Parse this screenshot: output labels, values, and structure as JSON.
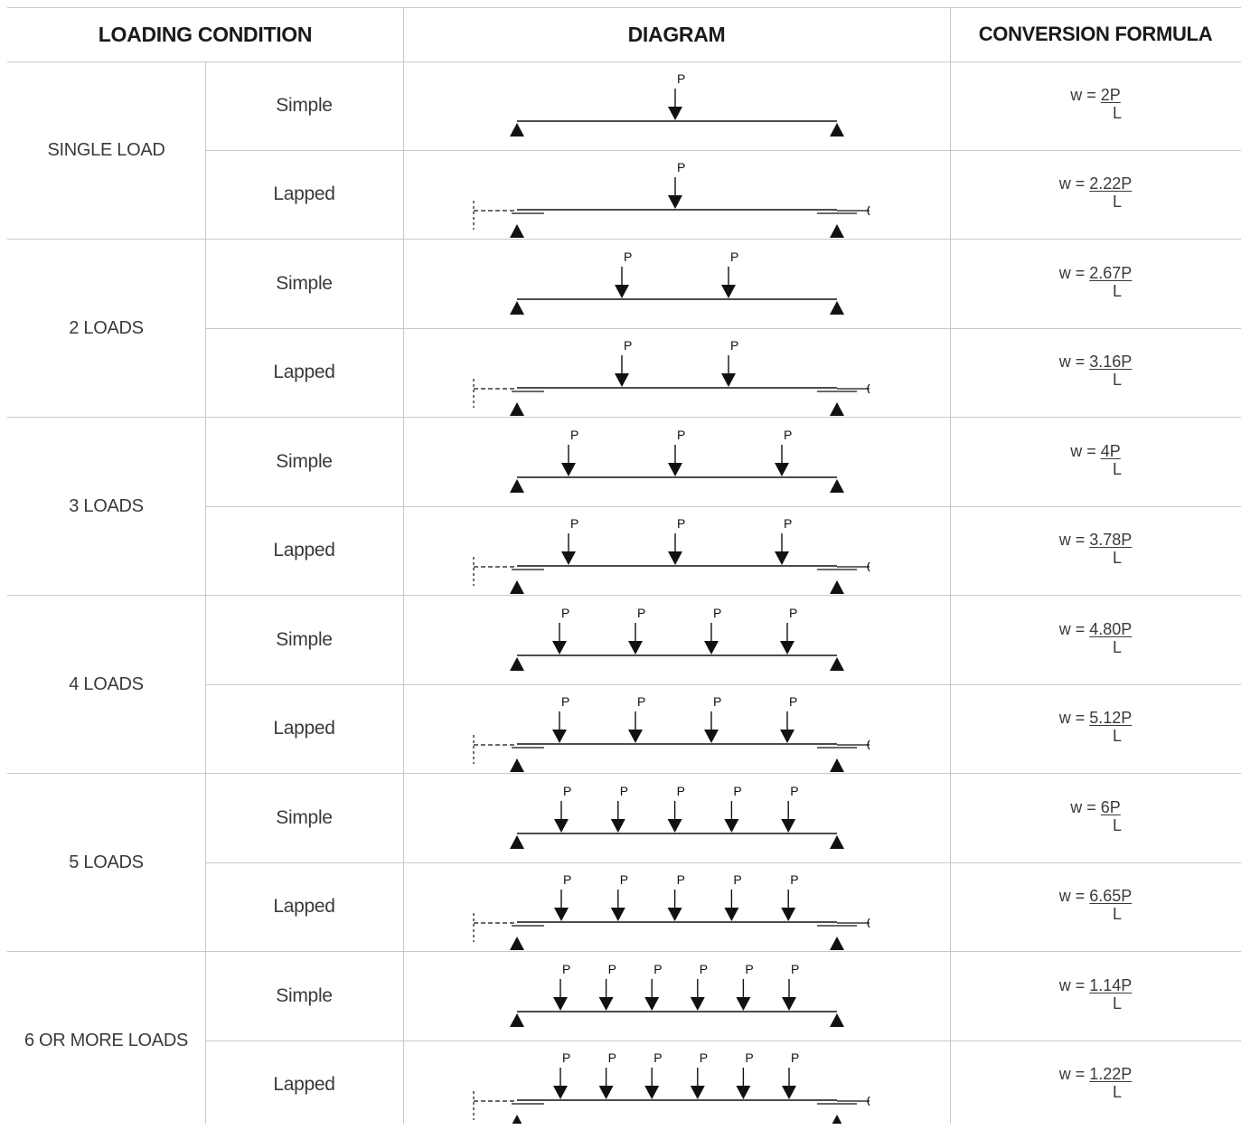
{
  "header": {
    "loading_condition": "LOADING CONDITION",
    "diagram": "DIAGRAM",
    "conversion_formula": "CONVERSION FORMULA"
  },
  "groups": [
    {
      "label": "SINGLE LOAD",
      "loads": 1,
      "rows": [
        {
          "condition": "Simple",
          "prefix": "w = ",
          "numerator": "2P",
          "denominator": "L"
        },
        {
          "condition": "Lapped",
          "prefix": "w = ",
          "numerator": "2.22P",
          "denominator": "L"
        }
      ]
    },
    {
      "label": "2 LOADS",
      "loads": 2,
      "rows": [
        {
          "condition": "Simple",
          "prefix": "w = ",
          "numerator": "2.67P",
          "denominator": "L"
        },
        {
          "condition": "Lapped",
          "prefix": "w = ",
          "numerator": "3.16P",
          "denominator": "L"
        }
      ]
    },
    {
      "label": "3 LOADS",
      "loads": 3,
      "rows": [
        {
          "condition": "Simple",
          "prefix": "w = ",
          "numerator": "4P",
          "denominator": "L"
        },
        {
          "condition": "Lapped",
          "prefix": "w = ",
          "numerator": "3.78P",
          "denominator": "L"
        }
      ]
    },
    {
      "label": "4 LOADS",
      "loads": 4,
      "rows": [
        {
          "condition": "Simple",
          "prefix": "w = ",
          "numerator": "4.80P",
          "denominator": "L"
        },
        {
          "condition": "Lapped",
          "prefix": "w = ",
          "numerator": "5.12P",
          "denominator": "L"
        }
      ]
    },
    {
      "label": "5 LOADS",
      "loads": 5,
      "rows": [
        {
          "condition": "Simple",
          "prefix": "w = ",
          "numerator": "6P",
          "denominator": "L"
        },
        {
          "condition": "Lapped",
          "prefix": "w = ",
          "numerator": "6.65P",
          "denominator": "L"
        }
      ]
    },
    {
      "label": "6 OR MORE LOADS",
      "loads": 6,
      "rows": [
        {
          "condition": "Simple",
          "prefix": "w = ",
          "numerator": "1.14P",
          "denominator": "L"
        },
        {
          "condition": "Lapped",
          "prefix": "w = ",
          "numerator": "1.22P",
          "denominator": "L"
        }
      ]
    }
  ],
  "load_label": "P"
}
